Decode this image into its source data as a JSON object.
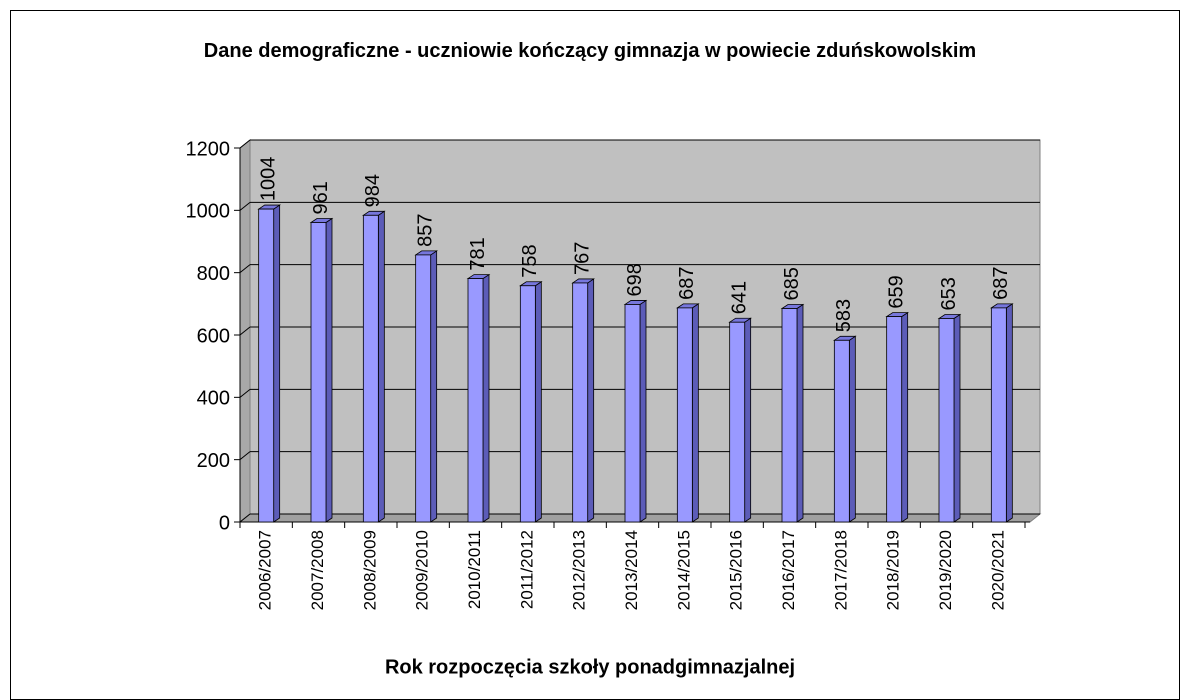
{
  "chart_data": {
    "type": "bar",
    "title": "Dane demograficzne - uczniowie kończący gimnazja w powiecie zduńskowolskim",
    "x_label": "Rok rozpoczęcia szkoły ponadgimnazjalnej",
    "categories": [
      "2006/2007",
      "2007/2008",
      "2008/2009",
      "2009/2010",
      "2010/2011",
      "2011/2012",
      "2012/2013",
      "2013/2014",
      "2014/2015",
      "2015/2016",
      "2016/2017",
      "2017/2018",
      "2018/2019",
      "2019/2020",
      "2020/2021"
    ],
    "values": [
      1004,
      961,
      984,
      857,
      781,
      758,
      767,
      698,
      687,
      641,
      685,
      583,
      659,
      653,
      687
    ],
    "color": "#9999ff",
    "ylim": [
      0,
      1200
    ],
    "yticks": [
      0,
      200,
      400,
      600,
      800,
      1000,
      1200
    ],
    "grid": true
  }
}
